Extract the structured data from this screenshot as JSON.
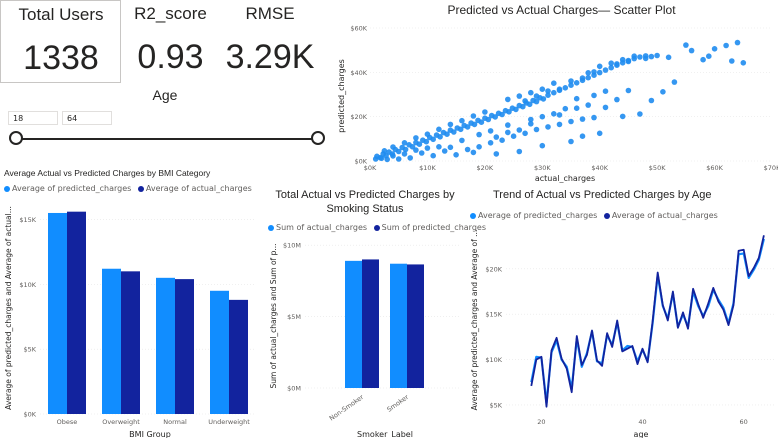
{
  "kpis": [
    {
      "title": "Total Users",
      "value": "1338"
    },
    {
      "title": "R2_score",
      "value": "0.93"
    },
    {
      "title": "RMSE",
      "value": "3.29K"
    }
  ],
  "age_slicer": {
    "title": "Age",
    "min": "18",
    "max": "64"
  },
  "colors": {
    "predicted": "#118DFF",
    "actual": "#12239E",
    "scatter": "#1F8CF0",
    "grid": "#e6e6e6"
  },
  "scatter_chart": {
    "title": "Predicted vs Actual Charges— Scatter Plot",
    "xlabel": "actual_charges",
    "ylabel": "predicted_charges",
    "xticks": [
      "$0K",
      "$10K",
      "$20K",
      "$30K",
      "$40K",
      "$50K",
      "$60K",
      "$70K"
    ],
    "yticks": [
      "$0K",
      "$20K",
      "$40K",
      "$60K"
    ]
  },
  "bmi_chart": {
    "title": "Average Actual vs Predicted Charges by BMI Category",
    "legend": [
      "Average of predicted_charges",
      "Average of actual_charges"
    ],
    "xlabel": "BMI Group",
    "ylabel": "Average of predicted_charges and Average of actual...",
    "yticks": [
      "$0K",
      "$5K",
      "$10K",
      "$15K"
    ]
  },
  "smoking_chart": {
    "title_line1": "Total Actual vs Predicted Charges by",
    "title_line2": "Smoking Status",
    "legend": [
      "Sum of actual_charges",
      "Sum of predicted_charges"
    ],
    "xlabel": "Smoker_Label",
    "ylabel": "Sum of actual_charges and Sum of p...",
    "yticks": [
      "$0M",
      "$5M",
      "$10M"
    ]
  },
  "age_chart": {
    "title": "Trend of Actual vs Predicted Charges by Age",
    "legend": [
      "Average of predicted_charges",
      "Average of actual_charges"
    ],
    "xlabel": "age",
    "ylabel": "Average of predicted_charges and Average of ...",
    "xticks": [
      "20",
      "40",
      "60"
    ],
    "yticks": [
      "$5K",
      "$10K",
      "$15K",
      "$20K"
    ]
  },
  "chart_data": [
    {
      "type": "scatter",
      "title": "Predicted vs Actual Charges— Scatter Plot",
      "xlabel": "actual_charges",
      "ylabel": "predicted_charges",
      "xlim": [
        0,
        70000
      ],
      "ylim": [
        0,
        60000
      ],
      "points": [
        [
          1200,
          2100
        ],
        [
          1800,
          1500
        ],
        [
          2300,
          3200
        ],
        [
          2800,
          2400
        ],
        [
          3300,
          4000
        ],
        [
          3900,
          3100
        ],
        [
          4400,
          5200
        ],
        [
          5000,
          4300
        ],
        [
          5600,
          6100
        ],
        [
          6200,
          5200
        ],
        [
          6800,
          7300
        ],
        [
          7400,
          6400
        ],
        [
          8000,
          8300
        ],
        [
          8600,
          7600
        ],
        [
          9200,
          9400
        ],
        [
          9800,
          8700
        ],
        [
          10400,
          10600
        ],
        [
          11000,
          9800
        ],
        [
          11600,
          11700
        ],
        [
          12200,
          10900
        ],
        [
          12800,
          12800
        ],
        [
          13400,
          12100
        ],
        [
          14000,
          13900
        ],
        [
          14600,
          13100
        ],
        [
          15200,
          14900
        ],
        [
          15800,
          14300
        ],
        [
          16400,
          16000
        ],
        [
          17000,
          15400
        ],
        [
          17600,
          17100
        ],
        [
          18200,
          16500
        ],
        [
          18800,
          18300
        ],
        [
          19400,
          17500
        ],
        [
          20000,
          19300
        ],
        [
          20600,
          18700
        ],
        [
          21200,
          20500
        ],
        [
          21800,
          19900
        ],
        [
          22400,
          21500
        ],
        [
          23000,
          21000
        ],
        [
          23600,
          22700
        ],
        [
          24200,
          22200
        ],
        [
          24800,
          23800
        ],
        [
          25400,
          23300
        ],
        [
          26000,
          25000
        ],
        [
          26600,
          24500
        ],
        [
          27200,
          26200
        ],
        [
          27800,
          25600
        ],
        [
          28400,
          27300
        ],
        [
          29000,
          26800
        ],
        [
          29600,
          28500
        ],
        [
          30200,
          28000
        ],
        [
          31000,
          29700
        ],
        [
          32000,
          30800
        ],
        [
          33000,
          31900
        ],
        [
          34000,
          33000
        ],
        [
          35000,
          34200
        ],
        [
          36000,
          35300
        ],
        [
          37000,
          36400
        ],
        [
          38000,
          37600
        ],
        [
          39000,
          38700
        ],
        [
          40000,
          39900
        ],
        [
          41000,
          41000
        ],
        [
          42000,
          42100
        ],
        [
          43000,
          43200
        ],
        [
          44000,
          44300
        ],
        [
          45000,
          45300
        ],
        [
          46000,
          46200
        ],
        [
          47000,
          46900
        ],
        [
          48000,
          47400
        ],
        [
          49000,
          47100
        ],
        [
          50000,
          47600
        ],
        [
          17000,
          5200
        ],
        [
          19000,
          6400
        ],
        [
          21000,
          8200
        ],
        [
          23000,
          9400
        ],
        [
          25000,
          11200
        ],
        [
          27000,
          12500
        ],
        [
          29000,
          14200
        ],
        [
          31000,
          15400
        ],
        [
          33000,
          16500
        ],
        [
          35000,
          17800
        ],
        [
          37000,
          18900
        ],
        [
          39000,
          19600
        ],
        [
          26000,
          4300
        ],
        [
          30000,
          6900
        ],
        [
          35000,
          8800
        ],
        [
          37000,
          11200
        ],
        [
          40000,
          12500
        ],
        [
          22000,
          3200
        ],
        [
          14000,
          6200
        ],
        [
          16000,
          9300
        ],
        [
          19000,
          11900
        ],
        [
          21000,
          13600
        ],
        [
          24000,
          16200
        ],
        [
          28000,
          18700
        ],
        [
          32000,
          21300
        ],
        [
          36000,
          23800
        ],
        [
          38000,
          25200
        ],
        [
          41000,
          24200
        ],
        [
          44000,
          20100
        ],
        [
          47000,
          21200
        ],
        [
          49000,
          27300
        ],
        [
          51000,
          31200
        ],
        [
          53000,
          35600
        ],
        [
          43000,
          27700
        ],
        [
          45000,
          31800
        ],
        [
          11000,
          2400
        ],
        [
          9000,
          3600
        ],
        [
          7000,
          1400
        ],
        [
          5000,
          900
        ],
        [
          3000,
          700
        ],
        [
          28000,
          30800
        ],
        [
          30000,
          32400
        ],
        [
          32000,
          35100
        ],
        [
          26000,
          29300
        ],
        [
          24000,
          27800
        ],
        [
          38000,
          39800
        ],
        [
          40000,
          42700
        ],
        [
          42000,
          44100
        ],
        [
          44000,
          45700
        ],
        [
          46000,
          47300
        ],
        [
          55000,
          52300
        ],
        [
          56000,
          49800
        ],
        [
          60000,
          50600
        ],
        [
          62000,
          52100
        ],
        [
          64000,
          53400
        ],
        [
          59000,
          47300
        ],
        [
          58000,
          45700
        ],
        [
          65000,
          44300
        ],
        [
          63000,
          45100
        ],
        [
          52000,
          46800
        ],
        [
          33000,
          20800
        ],
        [
          34000,
          23600
        ],
        [
          36000,
          28100
        ],
        [
          39000,
          29600
        ],
        [
          41000,
          31500
        ],
        [
          30000,
          20000
        ],
        [
          28000,
          16800
        ],
        [
          26000,
          14000
        ],
        [
          24000,
          12900
        ],
        [
          22000,
          10800
        ],
        [
          18000,
          3900
        ],
        [
          15000,
          2800
        ],
        [
          13000,
          4500
        ],
        [
          12000,
          6400
        ],
        [
          10000,
          5800
        ],
        [
          8000,
          4900
        ],
        [
          6000,
          3200
        ],
        [
          4000,
          2300
        ],
        [
          2000,
          1200
        ],
        [
          1000,
          900
        ],
        [
          27000,
          27100
        ],
        [
          29000,
          29300
        ],
        [
          31000,
          31600
        ],
        [
          33000,
          32400
        ],
        [
          35000,
          36100
        ],
        [
          37000,
          37400
        ],
        [
          39000,
          40200
        ],
        [
          43000,
          43800
        ],
        [
          45000,
          44900
        ],
        [
          48000,
          46300
        ],
        [
          20000,
          22100
        ],
        [
          18000,
          20300
        ],
        [
          16000,
          18200
        ],
        [
          14000,
          16500
        ],
        [
          12000,
          14300
        ],
        [
          10000,
          12100
        ],
        [
          8000,
          10400
        ],
        [
          6000,
          8200
        ],
        [
          4000,
          6300
        ],
        [
          2500,
          4600
        ]
      ]
    },
    {
      "type": "bar",
      "title": "Average Actual vs Predicted Charges by BMI Category",
      "xlabel": "BMI Group",
      "ylabel": "Average of predicted_charges and Average of actual...",
      "ylim": [
        0,
        16500
      ],
      "categories": [
        "Obese",
        "Overweight",
        "Normal",
        "Underweight"
      ],
      "series": [
        {
          "name": "Average of predicted_charges",
          "values": [
            15500,
            11200,
            10500,
            9500
          ]
        },
        {
          "name": "Average of actual_charges",
          "values": [
            15600,
            11000,
            10400,
            8800
          ]
        }
      ]
    },
    {
      "type": "bar",
      "title": "Total Actual vs Predicted Charges by Smoking Status",
      "xlabel": "Smoker_Label",
      "ylabel": "Sum of actual_charges and Sum of p...",
      "ylim": [
        0,
        10500000
      ],
      "categories": [
        "Non-Smoker",
        "Smoker"
      ],
      "series": [
        {
          "name": "Sum of actual_charges",
          "values": [
            8900000,
            8700000
          ]
        },
        {
          "name": "Sum of predicted_charges",
          "values": [
            9000000,
            8650000
          ]
        }
      ]
    },
    {
      "type": "line",
      "title": "Trend of Actual vs Predicted Charges by Age",
      "xlabel": "age",
      "ylabel": "Average of predicted_charges and Average of ...",
      "xlim": [
        13,
        66
      ],
      "ylim": [
        4000,
        24500
      ],
      "x": [
        18,
        19,
        20,
        21,
        22,
        23,
        24,
        25,
        26,
        27,
        28,
        29,
        30,
        31,
        32,
        33,
        34,
        35,
        36,
        37,
        38,
        39,
        40,
        41,
        42,
        43,
        44,
        45,
        46,
        47,
        48,
        49,
        50,
        51,
        52,
        53,
        54,
        55,
        56,
        57,
        58,
        59,
        60,
        61,
        62,
        63,
        64
      ],
      "series": [
        {
          "name": "Average of predicted_charges",
          "values": [
            7500,
            10300,
            10200,
            5200,
            10800,
            12100,
            10000,
            9200,
            6800,
            12300,
            9200,
            10700,
            13100,
            9800,
            9600,
            12700,
            11600,
            14100,
            11000,
            11500,
            11400,
            9800,
            11100,
            9800,
            14000,
            19300,
            15900,
            14500,
            17300,
            13600,
            15000,
            13600,
            17500,
            15900,
            14800,
            15900,
            17700,
            16600,
            15700,
            14000,
            16200,
            21600,
            21700,
            19000,
            19900,
            21000,
            23300
          ]
        },
        {
          "name": "Average of actual_charges",
          "values": [
            7100,
            10000,
            10300,
            4800,
            11000,
            12400,
            10100,
            9000,
            6400,
            12600,
            9400,
            10500,
            13200,
            9900,
            9300,
            12900,
            11400,
            14300,
            10900,
            11200,
            11500,
            9500,
            11200,
            9700,
            14200,
            19600,
            16000,
            14300,
            17500,
            13500,
            15200,
            13400,
            17800,
            16100,
            14600,
            16200,
            17900,
            16400,
            15500,
            13800,
            16000,
            22000,
            22100,
            19200,
            20100,
            21200,
            23700
          ]
        }
      ]
    }
  ]
}
